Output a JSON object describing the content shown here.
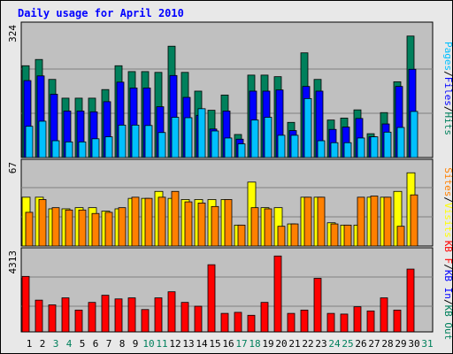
{
  "title": "Daily usage for April 2010",
  "colors": {
    "title": "#0000ff",
    "hits": "#00805c",
    "files": "#0000ff",
    "pages": "#00c0ff",
    "visits": "#ffff00",
    "sites": "#ff8000",
    "kb_in": "#0000ff",
    "kb_out": "#00805c",
    "kbytes": "#ff0000",
    "separator": "#000000",
    "weekend_day": "#00805c",
    "weekday": "#000000"
  },
  "chart_data": [
    {
      "type": "bar",
      "panel": "hits-files-pages",
      "categories": [
        "1",
        "2",
        "3",
        "4",
        "5",
        "6",
        "7",
        "8",
        "9",
        "10",
        "11",
        "12",
        "13",
        "14",
        "15",
        "16",
        "17",
        "18",
        "19",
        "20",
        "21",
        "22",
        "23",
        "24",
        "25",
        "26",
        "27",
        "28",
        "29",
        "30",
        "31"
      ],
      "ymax_label": "324",
      "ylim": [
        0,
        324
      ],
      "legend_order": [
        "Pages",
        "Files",
        "Hits"
      ],
      "legend_separator": "/",
      "series": [
        {
          "name": "Hits",
          "values": [
            235,
            251,
            200,
            152,
            152,
            152,
            174,
            235,
            220,
            220,
            218,
            285,
            218,
            170,
            121,
            160,
            59,
            211,
            211,
            207,
            90,
            268,
            200,
            96,
            101,
            122,
            61,
            115,
            194,
            311,
            0
          ]
        },
        {
          "name": "Files",
          "values": [
            197,
            209,
            162,
            119,
            119,
            117,
            143,
            193,
            178,
            178,
            130,
            210,
            154,
            108,
            73,
            119,
            47,
            170,
            170,
            173,
            69,
            182,
            170,
            72,
            78,
            100,
            53,
            86,
            182,
            226,
            0
          ]
        },
        {
          "name": "Pages",
          "values": [
            80,
            93,
            43,
            40,
            40,
            48,
            53,
            83,
            83,
            82,
            64,
            103,
            102,
            125,
            68,
            50,
            35,
            96,
            103,
            57,
            57,
            151,
            43,
            38,
            38,
            50,
            53,
            65,
            77,
            118,
            0
          ]
        }
      ]
    },
    {
      "type": "bar",
      "panel": "visits-sites",
      "categories": [
        "1",
        "2",
        "3",
        "4",
        "5",
        "6",
        "7",
        "8",
        "9",
        "10",
        "11",
        "12",
        "13",
        "14",
        "15",
        "16",
        "17",
        "18",
        "19",
        "20",
        "21",
        "22",
        "23",
        "24",
        "25",
        "26",
        "27",
        "28",
        "29",
        "30",
        "31"
      ],
      "ymax_label": "67",
      "ylim": [
        0,
        67
      ],
      "legend_order": [
        "Sites",
        "Visits"
      ],
      "legend_separator": "/",
      "series": [
        {
          "name": "Visits",
          "values": [
            42,
            42,
            32,
            32,
            33,
            33,
            30,
            32,
            41,
            41,
            47,
            41,
            40,
            40,
            40,
            40,
            18,
            55,
            33,
            33,
            19,
            42,
            42,
            20,
            18,
            18,
            42,
            42,
            47,
            63,
            0
          ]
        },
        {
          "name": "Sites",
          "values": [
            29,
            40,
            33,
            31,
            31,
            28,
            29,
            33,
            42,
            41,
            42,
            47,
            38,
            37,
            34,
            40,
            18,
            33,
            32,
            17,
            19,
            42,
            42,
            19,
            18,
            42,
            43,
            42,
            17,
            44,
            0
          ]
        }
      ]
    },
    {
      "type": "bar",
      "panel": "kbytes",
      "categories": [
        "1",
        "2",
        "3",
        "4",
        "5",
        "6",
        "7",
        "8",
        "9",
        "10",
        "11",
        "12",
        "13",
        "14",
        "15",
        "16",
        "17",
        "18",
        "19",
        "20",
        "21",
        "22",
        "23",
        "24",
        "25",
        "26",
        "27",
        "28",
        "29",
        "30",
        "31"
      ],
      "ymax_label": "4313",
      "ylim": [
        0,
        4313
      ],
      "legend_order": [
        "KB F",
        "KB In",
        "KB Out"
      ],
      "legend_separator": "/",
      "series": [
        {
          "name": "KB F",
          "values": [
            3180,
            1820,
            1550,
            1950,
            1250,
            1690,
            2100,
            1890,
            1950,
            1280,
            1950,
            2300,
            1690,
            1470,
            3850,
            1060,
            1120,
            950,
            1690,
            4350,
            1060,
            1250,
            3070,
            1060,
            1020,
            1440,
            1200,
            1950,
            1250,
            3600,
            0
          ]
        }
      ]
    },
    {
      "type": "axis",
      "categories": [
        "1",
        "2",
        "3",
        "4",
        "5",
        "6",
        "7",
        "8",
        "9",
        "10",
        "11",
        "12",
        "13",
        "14",
        "15",
        "16",
        "17",
        "18",
        "19",
        "20",
        "21",
        "22",
        "23",
        "24",
        "25",
        "26",
        "27",
        "28",
        "29",
        "30",
        "31"
      ],
      "weekend_days": [
        "3",
        "4",
        "10",
        "11",
        "17",
        "18",
        "24",
        "25",
        "31"
      ]
    }
  ]
}
